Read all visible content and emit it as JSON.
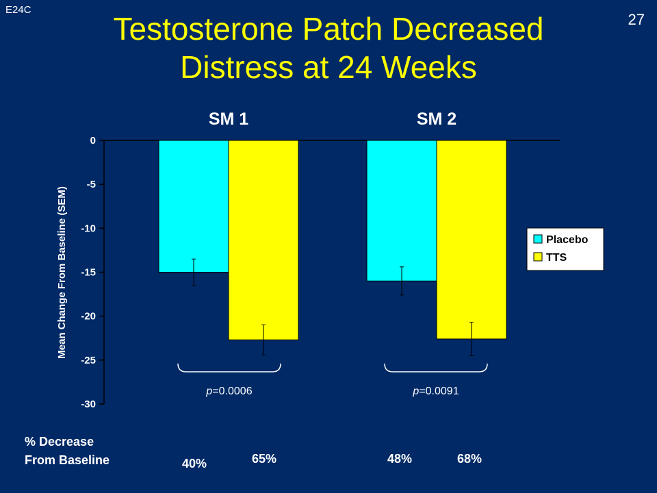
{
  "slide": {
    "code": "E24C",
    "number": "27",
    "title_line1": "Testosterone Patch Decreased",
    "title_line2": "Distress at 24 Weeks",
    "footer_line1": "% Decrease",
    "footer_line2": "From Baseline"
  },
  "colors": {
    "background": "#002966",
    "title": "#ffff00",
    "placebo": "#00ffff",
    "tts": "#ffff00",
    "legend_bg": "#ffffff"
  },
  "chart_data": {
    "type": "bar",
    "title": "",
    "xlabel": "",
    "ylabel": "Mean Change From Baseline (SEM)",
    "ylim": [
      -30,
      0
    ],
    "yticks": [
      0,
      -5,
      -10,
      -15,
      -20,
      -25,
      -30
    ],
    "ytick_labels": [
      "0",
      "-5",
      "-10",
      "-15",
      "-20",
      "-25",
      "-30"
    ],
    "categories": [
      "SM 1",
      "SM 2"
    ],
    "series": [
      {
        "name": "Placebo",
        "values": [
          -15.0,
          -16.0
        ],
        "sem": [
          1.5,
          1.6
        ]
      },
      {
        "name": "TTS",
        "values": [
          -22.7,
          -22.6
        ],
        "sem": [
          1.7,
          1.9
        ]
      }
    ],
    "legend": {
      "position": "right",
      "entries": [
        "Placebo",
        "TTS"
      ]
    },
    "p_values": [
      "p=0.0006",
      "p=0.0091"
    ],
    "percent_decrease": [
      [
        "40%",
        "65%"
      ],
      [
        "48%",
        "68%"
      ]
    ],
    "grid": false
  }
}
